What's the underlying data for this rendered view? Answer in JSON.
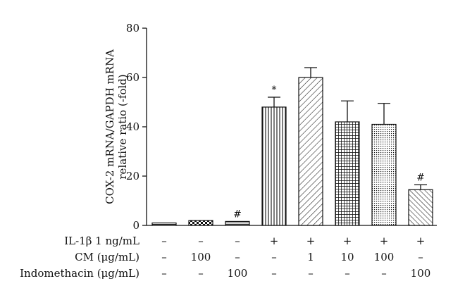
{
  "chart_data": {
    "type": "bar",
    "ylabel_lines": [
      "COX-2 mRNA/GAPDH mRNA",
      "relative ratio (-fold)"
    ],
    "ylim": [
      0,
      80
    ],
    "yticks": [
      0,
      20,
      40,
      60,
      80
    ],
    "grid": false,
    "legend": "none",
    "values": [
      1.0,
      2.0,
      1.6,
      48.0,
      60.0,
      42.0,
      41.0,
      14.5
    ],
    "errors": [
      0.2,
      0.3,
      0.3,
      4.0,
      4.0,
      8.5,
      8.5,
      2.0
    ],
    "annotations": [
      "",
      "",
      "#",
      "*",
      "",
      "",
      "",
      "#"
    ],
    "patterns": [
      "hstripe",
      "checker",
      "hstripe-dense",
      "vstripe",
      "diag-back",
      "grid",
      "dots",
      "diag-fwd"
    ],
    "conditions": [
      {
        "label": "IL-1β 1 ng/mL",
        "values": [
          "–",
          "–",
          "–",
          "+",
          "+",
          "+",
          "+",
          "+"
        ]
      },
      {
        "label": "CM (μg/mL)",
        "values": [
          "–",
          "100",
          "–",
          "–",
          "1",
          "10",
          "100",
          "–"
        ]
      },
      {
        "label": "Indomethacin (μg/mL)",
        "values": [
          "–",
          "–",
          "100",
          "–",
          "–",
          "–",
          "–",
          "100"
        ]
      }
    ]
  }
}
